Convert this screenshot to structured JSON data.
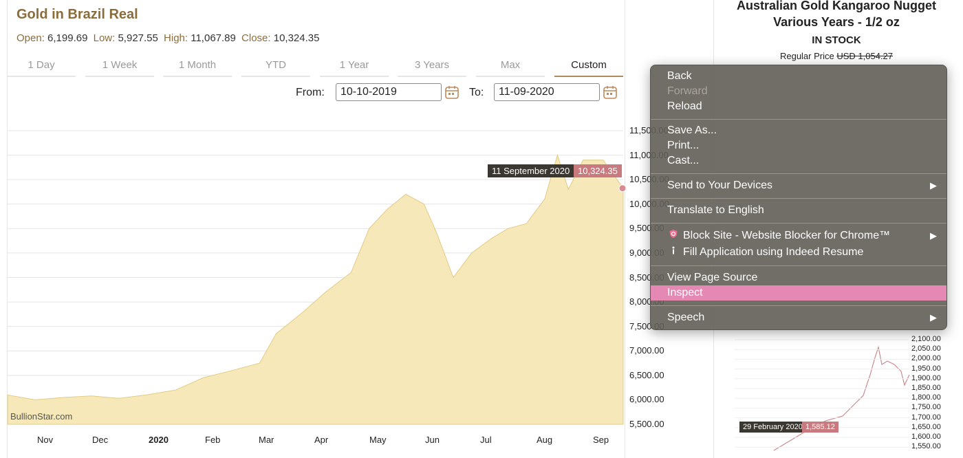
{
  "page": {
    "title": "Gold in Brazil Real",
    "ohlc": {
      "open_label": "Open:",
      "open": "6,199.69",
      "low_label": "Low:",
      "low": "5,927.55",
      "high_label": "High:",
      "high": "11,067.89",
      "close_label": "Close:",
      "close": "10,324.35"
    },
    "tabs": [
      {
        "label": "1 Day"
      },
      {
        "label": "1 Week"
      },
      {
        "label": "1 Month"
      },
      {
        "label": "YTD"
      },
      {
        "label": "1 Year"
      },
      {
        "label": "3 Years"
      },
      {
        "label": "Max"
      },
      {
        "label": "Custom",
        "active": true
      }
    ],
    "date_range": {
      "from_label": "From:",
      "from_value": "10-10-2019",
      "to_label": "To:",
      "to_value": "11-09-2020"
    },
    "watermark": "BullionStar.com",
    "tooltip": {
      "date": "11 September 2020",
      "value": "10,324.35"
    }
  },
  "chart_data": {
    "type": "area",
    "title": "",
    "y_ticks": [
      "11,500.00",
      "11,000.00",
      "10,500.00",
      "10,000.00",
      "9,500.00",
      "9,000.00",
      "8,500.00",
      "8,000.00",
      "7,500.00",
      "7,000.00",
      "6,500.00",
      "6,000.00",
      "5,500.00"
    ],
    "x_ticks": [
      "Nov",
      "Dec",
      "2020",
      "Feb",
      "Mar",
      "Apr",
      "May",
      "Jun",
      "Jul",
      "Aug",
      "Sep"
    ],
    "ylim": [
      5500,
      11500
    ],
    "series": [
      {
        "x": [
          "2019-10-10",
          "2019-10-25",
          "2019-11-10",
          "2019-11-25",
          "2019-12-10",
          "2019-12-25",
          "2020-01-10",
          "2020-01-25",
          "2020-02-10",
          "2020-02-25",
          "2020-03-05",
          "2020-03-20",
          "2020-04-01",
          "2020-04-15",
          "2020-04-25",
          "2020-05-05",
          "2020-05-15",
          "2020-05-25",
          "2020-06-01",
          "2020-06-10",
          "2020-06-20",
          "2020-07-01",
          "2020-07-10",
          "2020-07-20",
          "2020-07-30",
          "2020-08-06",
          "2020-08-12",
          "2020-08-20",
          "2020-08-31",
          "2020-09-11"
        ],
        "y": [
          6100,
          6000,
          6050,
          6080,
          6030,
          6100,
          6200,
          6450,
          6600,
          6750,
          7350,
          7800,
          8200,
          8600,
          9500,
          9900,
          10200,
          10000,
          9400,
          8500,
          9000,
          9300,
          9500,
          9600,
          10100,
          11000,
          10300,
          10900,
          10900,
          10324
        ]
      }
    ],
    "grid": true
  },
  "product": {
    "title_line1": "Australian Gold Kangaroo Nugget",
    "title_line2": "Various Years - 1/2 oz",
    "stock": "IN STOCK",
    "regular_price_label": "Regular Price",
    "regular_price_value": "USD 1,054.27",
    "mini_chart": {
      "y_ticks": [
        "2,100.00",
        "2,050.00",
        "2,000.00",
        "1,950.00",
        "1,900.00",
        "1,850.00",
        "1,800.00",
        "1,750.00",
        "1,700.00",
        "1,650.00",
        "1,600.00",
        "1,550.00"
      ],
      "tooltip_date": "29 February 2020",
      "tooltip_value": "1,585.12"
    }
  },
  "context_menu": {
    "items": [
      {
        "label": "Back"
      },
      {
        "label": "Forward",
        "disabled": true
      },
      {
        "label": "Reload"
      },
      {
        "label": "Save As..."
      },
      {
        "label": "Print..."
      },
      {
        "label": "Cast..."
      },
      {
        "label": "Send to Your Devices",
        "submenu": true
      },
      {
        "label": "Translate to English"
      },
      {
        "label": "Block Site - Website Blocker for Chrome™",
        "submenu": true,
        "icon": "shield-icon"
      },
      {
        "label": "Fill Application using Indeed Resume",
        "icon": "info-icon"
      },
      {
        "label": "View Page Source"
      },
      {
        "label": "Inspect",
        "highlighted": true
      },
      {
        "label": "Speech",
        "submenu": true
      }
    ],
    "arrow_glyph": "▶"
  },
  "colors": {
    "title": "#8a6d3b",
    "area_fill": "#f6e8b8",
    "area_stroke": "#e2cb85",
    "active_tab_underline": "#b08a5a",
    "menu_bg": "#625e58",
    "menu_highlight": "#e688b4",
    "tooltip_value_bg": "#c97a7f"
  }
}
